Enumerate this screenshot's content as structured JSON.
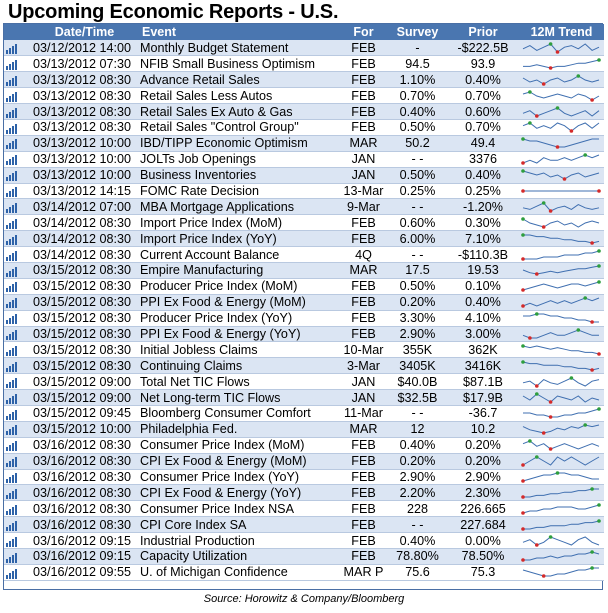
{
  "title": "Upcoming Economic Reports - U.S.",
  "header": {
    "datetime": "Date/Time",
    "event": "Event",
    "for": "For",
    "survey": "Survey",
    "prior": "Prior",
    "trend": "12M Trend"
  },
  "colors": {
    "header_bg": "#4a76b0",
    "row_alt": "#dbe5f3",
    "spark_line": "#3f6fb0",
    "high_marker": "#2e9e3e",
    "low_marker": "#d42a2a"
  },
  "rows": [
    {
      "dt": "03/12/2012 14:00",
      "event": "Monthly Budget Statement",
      "for": "FEB",
      "survey": "-",
      "prior": "-$222.5B",
      "trend": [
        5,
        7,
        4,
        6,
        8,
        3,
        6,
        7,
        5,
        8,
        4,
        6
      ]
    },
    {
      "dt": "03/13/2012 07:30",
      "event": "NFIB Small Business Optimism",
      "for": "FEB",
      "survey": "94.5",
      "prior": "93.9",
      "trend": [
        3,
        3,
        4,
        3,
        2,
        3,
        3,
        4,
        5,
        5,
        6,
        7
      ]
    },
    {
      "dt": "03/13/2012 08:30",
      "event": "Advance Retail Sales",
      "for": "FEB",
      "survey": "1.10%",
      "prior": "0.40%",
      "trend": [
        6,
        4,
        5,
        3,
        5,
        6,
        4,
        5,
        7,
        5,
        4,
        5
      ]
    },
    {
      "dt": "03/13/2012 08:30",
      "event": "Retail Sales Less Autos",
      "for": "FEB",
      "survey": "0.70%",
      "prior": "0.70%",
      "trend": [
        6,
        7,
        5,
        4,
        5,
        6,
        5,
        4,
        6,
        5,
        3,
        5
      ]
    },
    {
      "dt": "03/13/2012 08:30",
      "event": "Retail Sales Ex Auto & Gas",
      "for": "FEB",
      "survey": "0.40%",
      "prior": "0.60%",
      "trend": [
        5,
        6,
        4,
        5,
        6,
        7,
        5,
        4,
        5,
        6,
        4,
        6
      ]
    },
    {
      "dt": "03/13/2012 08:30",
      "event": "Retail Sales \"Control Group\"",
      "for": "FEB",
      "survey": "0.50%",
      "prior": "0.70%",
      "trend": [
        5,
        6,
        4,
        5,
        4,
        6,
        5,
        3,
        5,
        6,
        4,
        6
      ]
    },
    {
      "dt": "03/13/2012 10:00",
      "event": "IBD/TIPP Economic Optimism",
      "for": "MAR",
      "survey": "50.2",
      "prior": "49.4",
      "trend": [
        7,
        6,
        6,
        5,
        4,
        3,
        3,
        4,
        5,
        6,
        7,
        7
      ]
    },
    {
      "dt": "03/13/2012 10:00",
      "event": "JOLTs Job Openings",
      "for": "JAN",
      "survey": "- -",
      "prior": "3376",
      "trend": [
        4,
        5,
        4,
        6,
        5,
        5,
        6,
        5,
        6,
        7,
        6,
        7
      ]
    },
    {
      "dt": "03/13/2012 10:00",
      "event": "Business Inventories",
      "for": "JAN",
      "survey": "0.50%",
      "prior": "0.40%",
      "trend": [
        7,
        6,
        5,
        6,
        4,
        5,
        3,
        5,
        6,
        4,
        5,
        6
      ]
    },
    {
      "dt": "03/13/2012 14:15",
      "event": "FOMC Rate Decision",
      "for": "13-Mar",
      "survey": "0.25%",
      "prior": "0.25%",
      "trend": [
        5,
        5,
        5,
        5,
        5,
        5,
        5,
        5,
        5,
        5,
        5,
        5
      ]
    },
    {
      "dt": "03/14/2012 07:00",
      "event": "MBA Mortgage Applications",
      "for": "9-Mar",
      "survey": "- -",
      "prior": "-1.20%",
      "trend": [
        5,
        4,
        6,
        8,
        3,
        5,
        6,
        4,
        7,
        5,
        4,
        5
      ]
    },
    {
      "dt": "03/14/2012 08:30",
      "event": "Import Price Index (MoM)",
      "for": "FEB",
      "survey": "0.60%",
      "prior": "0.30%",
      "trend": [
        7,
        5,
        4,
        3,
        5,
        6,
        4,
        5,
        3,
        5,
        6,
        5
      ]
    },
    {
      "dt": "03/14/2012 08:30",
      "event": "Import Price Index (YoY)",
      "for": "FEB",
      "survey": "6.00%",
      "prior": "7.10%",
      "trend": [
        8,
        8,
        7,
        7,
        6,
        6,
        5,
        5,
        4,
        4,
        3,
        4
      ]
    },
    {
      "dt": "03/14/2012 08:30",
      "event": "Current Account Balance",
      "for": "4Q",
      "survey": "- -",
      "prior": "-$110.3B",
      "trend": [
        4,
        4,
        4,
        5,
        5,
        5,
        6,
        6,
        6,
        7,
        7,
        8
      ]
    },
    {
      "dt": "03/15/2012 08:30",
      "event": "Empire Manufacturing",
      "for": "MAR",
      "survey": "17.5",
      "prior": "19.53",
      "trend": [
        5,
        3,
        2,
        3,
        4,
        3,
        4,
        5,
        6,
        6,
        7,
        8
      ]
    },
    {
      "dt": "03/15/2012 08:30",
      "event": "Producer Price Index (MoM)",
      "for": "FEB",
      "survey": "0.50%",
      "prior": "0.10%",
      "trend": [
        4,
        5,
        6,
        7,
        6,
        5,
        6,
        7,
        7,
        6,
        7,
        8
      ]
    },
    {
      "dt": "03/15/2012 08:30",
      "event": "PPI Ex Food & Energy (MoM)",
      "for": "FEB",
      "survey": "0.20%",
      "prior": "0.40%",
      "trend": [
        5,
        6,
        5,
        6,
        7,
        6,
        7,
        6,
        7,
        8,
        7,
        8
      ]
    },
    {
      "dt": "03/15/2012 08:30",
      "event": "Producer Price Index (YoY)",
      "for": "FEB",
      "survey": "3.30%",
      "prior": "4.10%",
      "trend": [
        7,
        7,
        8,
        8,
        7,
        7,
        6,
        6,
        5,
        5,
        4,
        4
      ]
    },
    {
      "dt": "03/15/2012 08:30",
      "event": "PPI Ex Food & Energy (YoY)",
      "for": "FEB",
      "survey": "2.90%",
      "prior": "3.00%",
      "trend": [
        6,
        5,
        5,
        6,
        7,
        6,
        6,
        7,
        8,
        7,
        6,
        6
      ]
    },
    {
      "dt": "03/15/2012 08:30",
      "event": "Initial Jobless Claims",
      "for": "10-Mar",
      "survey": "355K",
      "prior": "362K",
      "trend": [
        8,
        7,
        8,
        7,
        6,
        7,
        6,
        5,
        5,
        4,
        4,
        3
      ]
    },
    {
      "dt": "03/15/2012 08:30",
      "event": "Continuing Claims",
      "for": "3-Mar",
      "survey": "3405K",
      "prior": "3416K",
      "trend": [
        8,
        7,
        7,
        6,
        6,
        6,
        5,
        5,
        4,
        4,
        3,
        4
      ]
    },
    {
      "dt": "03/15/2012 09:00",
      "event": "Total Net TIC Flows",
      "for": "JAN",
      "survey": "$40.0B",
      "prior": "$87.1B",
      "trend": [
        5,
        6,
        3,
        7,
        5,
        4,
        6,
        8,
        5,
        3,
        6,
        7
      ]
    },
    {
      "dt": "03/15/2012 09:00",
      "event": "Net Long-term TIC Flows",
      "for": "JAN",
      "survey": "$32.5B",
      "prior": "$17.9B",
      "trend": [
        6,
        4,
        7,
        5,
        3,
        6,
        5,
        4,
        6,
        3,
        5,
        4
      ]
    },
    {
      "dt": "03/15/2012 09:45",
      "event": "Bloomberg Consumer Comfort",
      "for": "11-Mar",
      "survey": "- -",
      "prior": "-36.7",
      "trend": [
        5,
        5,
        4,
        4,
        3,
        3,
        4,
        4,
        5,
        5,
        6,
        7
      ]
    },
    {
      "dt": "03/15/2012 10:00",
      "event": "Philadelphia Fed.",
      "for": "MAR",
      "survey": "12",
      "prior": "10.2",
      "trend": [
        6,
        4,
        3,
        2,
        3,
        5,
        4,
        6,
        5,
        7,
        6,
        7
      ]
    },
    {
      "dt": "03/16/2012 08:30",
      "event": "Consumer Price Index (MoM)",
      "for": "FEB",
      "survey": "0.40%",
      "prior": "0.20%",
      "trend": [
        6,
        7,
        5,
        6,
        4,
        5,
        6,
        5,
        4,
        5,
        6,
        5
      ]
    },
    {
      "dt": "03/16/2012 08:30",
      "event": "CPI Ex Food & Energy (MoM)",
      "for": "FEB",
      "survey": "0.20%",
      "prior": "0.20%",
      "trend": [
        4,
        5,
        6,
        5,
        4,
        6,
        5,
        6,
        5,
        4,
        5,
        6
      ]
    },
    {
      "dt": "03/16/2012 08:30",
      "event": "Consumer Price Index (YoY)",
      "for": "FEB",
      "survey": "2.90%",
      "prior": "2.90%",
      "trend": [
        4,
        5,
        6,
        7,
        7,
        8,
        8,
        7,
        7,
        6,
        5,
        5
      ]
    },
    {
      "dt": "03/16/2012 08:30",
      "event": "CPI Ex Food & Energy (YoY)",
      "for": "FEB",
      "survey": "2.20%",
      "prior": "2.30%",
      "trend": [
        3,
        3,
        4,
        4,
        5,
        5,
        6,
        6,
        7,
        7,
        8,
        8
      ]
    },
    {
      "dt": "03/16/2012 08:30",
      "event": "Consumer Price Index NSA",
      "for": "FEB",
      "survey": "228",
      "prior": "226.665",
      "trend": [
        3,
        4,
        4,
        5,
        5,
        6,
        6,
        6,
        5,
        5,
        6,
        7
      ]
    },
    {
      "dt": "03/16/2012 08:30",
      "event": "CPI Core Index SA",
      "for": "FEB",
      "survey": "- -",
      "prior": "227.684",
      "trend": [
        3,
        3,
        4,
        4,
        5,
        5,
        5,
        6,
        6,
        7,
        7,
        8
      ]
    },
    {
      "dt": "03/16/2012 09:15",
      "event": "Industrial Production",
      "for": "FEB",
      "survey": "0.40%",
      "prior": "0.00%",
      "trend": [
        5,
        6,
        4,
        5,
        7,
        6,
        5,
        4,
        6,
        7,
        5,
        4
      ]
    },
    {
      "dt": "03/16/2012 09:15",
      "event": "Capacity Utilization",
      "for": "FEB",
      "survey": "78.80%",
      "prior": "78.50%",
      "trend": [
        4,
        4,
        5,
        5,
        6,
        5,
        6,
        6,
        7,
        7,
        8,
        7
      ]
    },
    {
      "dt": "03/16/2012 09:55",
      "event": "U. of Michigan Confidence",
      "for": "MAR P",
      "survey": "75.6",
      "prior": "75.3",
      "trend": [
        6,
        5,
        4,
        3,
        3,
        4,
        4,
        5,
        6,
        6,
        7,
        7
      ]
    }
  ],
  "source": "Source: Horowitz & Company/Bloomberg"
}
